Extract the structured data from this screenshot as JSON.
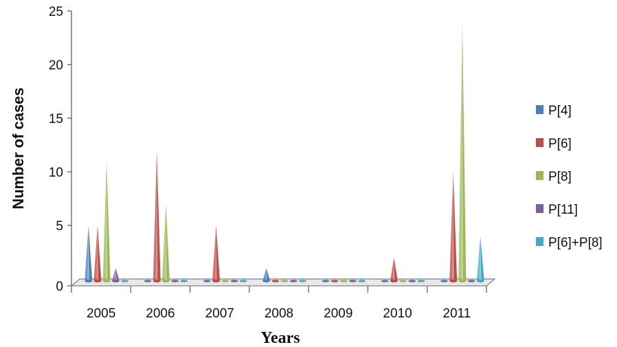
{
  "chart_data": {
    "type": "bar",
    "mark_shape": "cone",
    "xlabel": "Years",
    "ylabel": "Number of cases",
    "ylim": [
      0,
      25
    ],
    "yticks": [
      "0",
      "5",
      "10",
      "15",
      "20",
      "25"
    ],
    "categories": [
      "2005",
      "2006",
      "2007",
      "2008",
      "2009",
      "2010",
      "2011"
    ],
    "series": [
      {
        "name": "P[4]",
        "color": "#4a7ebb",
        "values": [
          5,
          0,
          0,
          1,
          0,
          0,
          0
        ]
      },
      {
        "name": "P[6]",
        "color": "#be4b48",
        "values": [
          5,
          12,
          5,
          0,
          0,
          2,
          10
        ]
      },
      {
        "name": "P[8]",
        "color": "#98b954",
        "values": [
          11,
          7,
          0,
          0,
          0,
          0,
          24
        ]
      },
      {
        "name": "P[11]",
        "color": "#7d60a0",
        "values": [
          1,
          0,
          0,
          0,
          0,
          0,
          0
        ]
      },
      {
        "name": "P[6]+P[8]",
        "color": "#46aac5",
        "values": [
          0,
          0,
          0,
          0,
          0,
          0,
          4
        ]
      }
    ],
    "grid": false,
    "legend_position": "right"
  }
}
